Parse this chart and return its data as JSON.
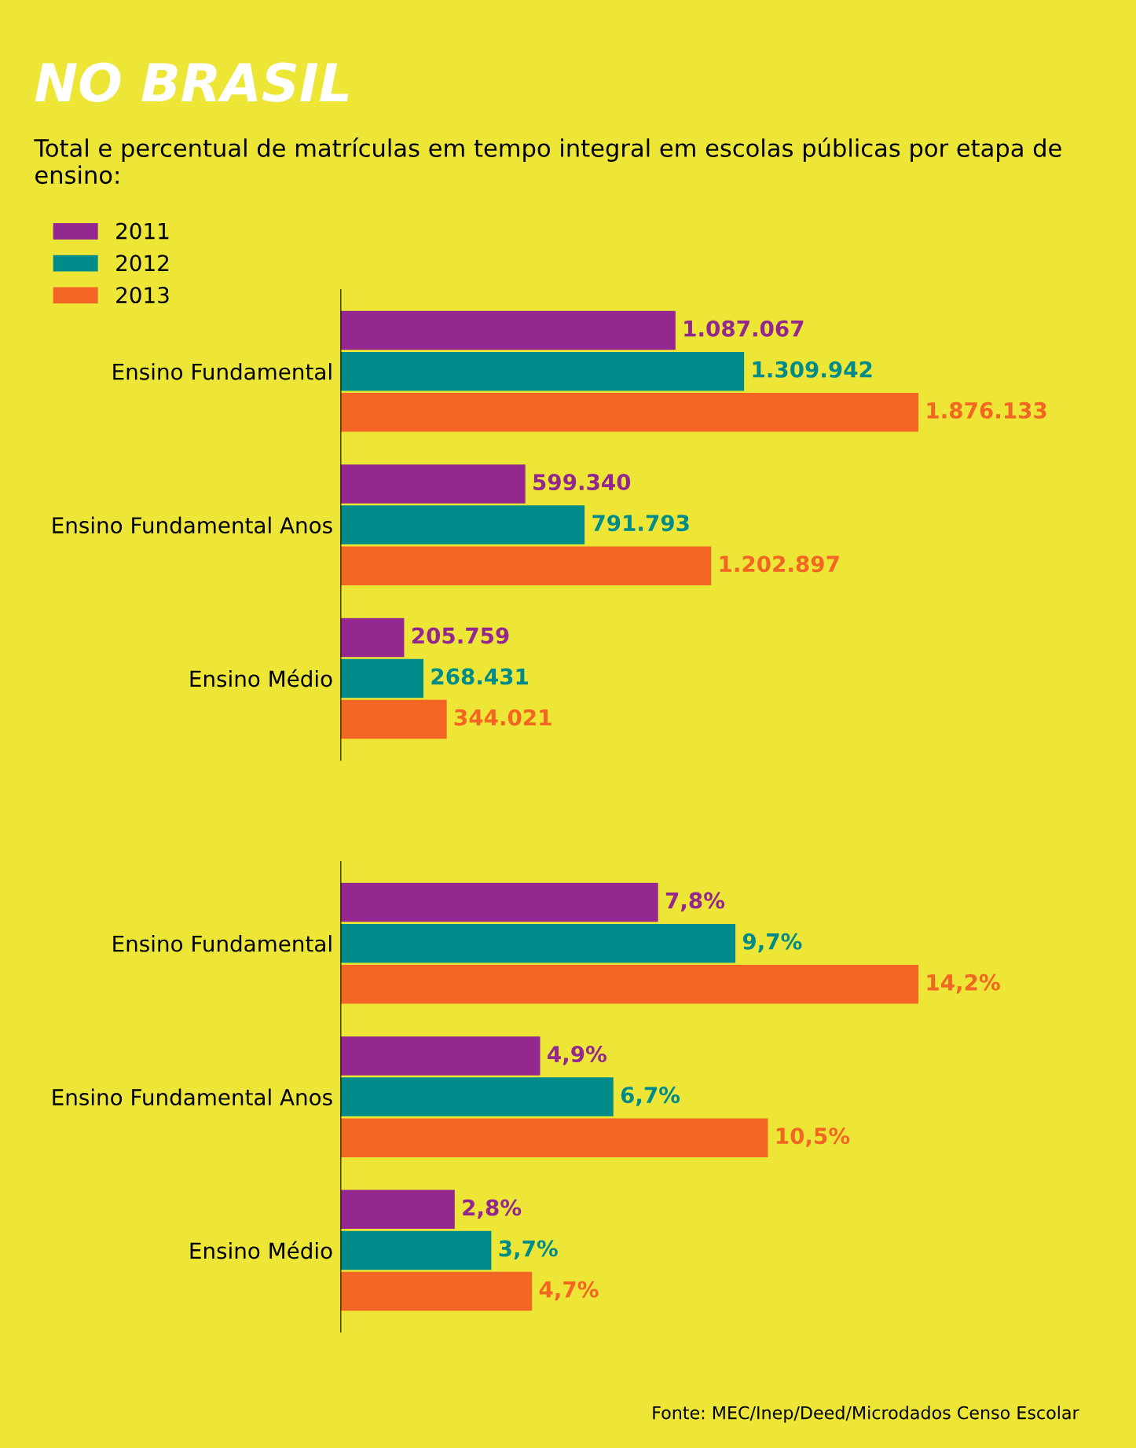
{
  "chart_data": [
    {
      "type": "bar",
      "orientation": "horizontal",
      "title": "NO BRASIL",
      "subtitle": "Total e percentual de matrículas em tempo integral em escolas públicas por etapa de ensino:",
      "categories": [
        "Ensino Fundamental",
        "Ensino Fundamental Anos",
        "Ensino Médio"
      ],
      "series": [
        {
          "name": "2011",
          "color": "#93278f",
          "values": [
            1087067,
            599340,
            205759
          ],
          "value_labels": [
            "1.087.067",
            "599.340",
            "205.759"
          ]
        },
        {
          "name": "2012",
          "color": "#008b8b",
          "values": [
            1309942,
            791793,
            268431
          ],
          "value_labels": [
            "1.309.942",
            "791.793",
            "268.431"
          ]
        },
        {
          "name": "2013",
          "color": "#f26522",
          "values": [
            1876133,
            1202897,
            344021
          ],
          "value_labels": [
            "1.876.133",
            "1.202.897",
            "344.021"
          ]
        }
      ],
      "legend": "top left",
      "tick_labels": "y",
      "grid": false
    },
    {
      "type": "bar",
      "orientation": "horizontal",
      "categories": [
        "Ensino Fundamental",
        "Ensino Fundamental Anos",
        "Ensino Médio"
      ],
      "series": [
        {
          "color": "#93278f",
          "values": [
            7.8,
            4.9,
            2.8
          ],
          "value_labels": [
            "7,8%",
            "4,9%",
            "2,8%"
          ]
        },
        {
          "color": "#008b8b",
          "values": [
            9.7,
            6.7,
            3.7
          ],
          "value_labels": [
            "9,7%",
            "6,7%",
            "3,7%"
          ]
        },
        {
          "color": "#f26522",
          "values": [
            14.2,
            10.5,
            4.7
          ],
          "value_labels": [
            "14,2%",
            "10,5%",
            "4,7%"
          ]
        }
      ],
      "tick_labels": "y",
      "grid": false,
      "annotations": [
        "Fonte: MEC/Inep/Deed/Microdados Censo Escolar"
      ]
    }
  ]
}
